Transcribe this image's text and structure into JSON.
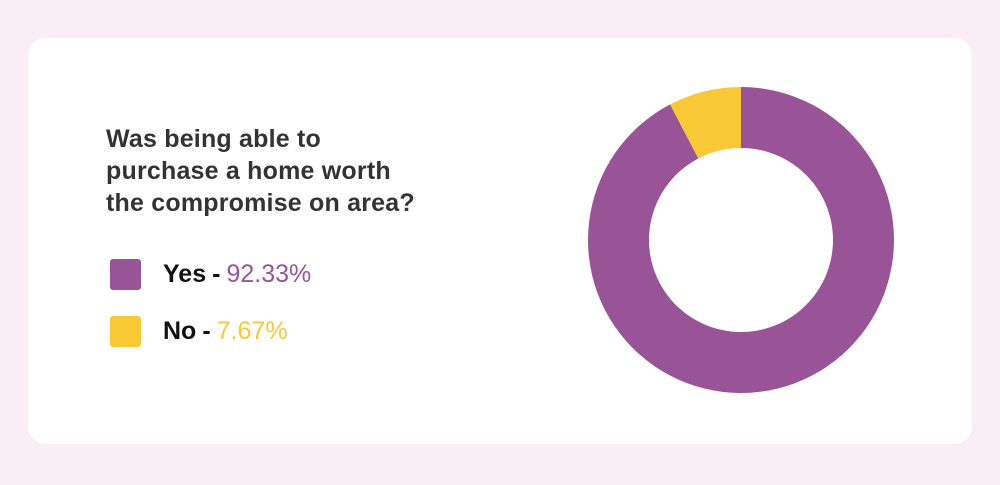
{
  "question": {
    "line1": "Was being able to",
    "line2": "purchase a home worth",
    "line3": "the compromise on area?"
  },
  "legend": [
    {
      "label": "Yes",
      "separator": "-",
      "value_text": "92.33%",
      "color": "#985497"
    },
    {
      "label": "No",
      "separator": "-",
      "value_text": "7.67%",
      "color": "#f9c935"
    }
  ],
  "chart_data": {
    "type": "pie",
    "variant": "donut",
    "categories": [
      "Yes",
      "No"
    ],
    "values": [
      92.33,
      7.67
    ],
    "colors": [
      "#985497",
      "#f9c935"
    ],
    "unit": "%",
    "start_angle": "top, clockwise (Yes first)"
  }
}
